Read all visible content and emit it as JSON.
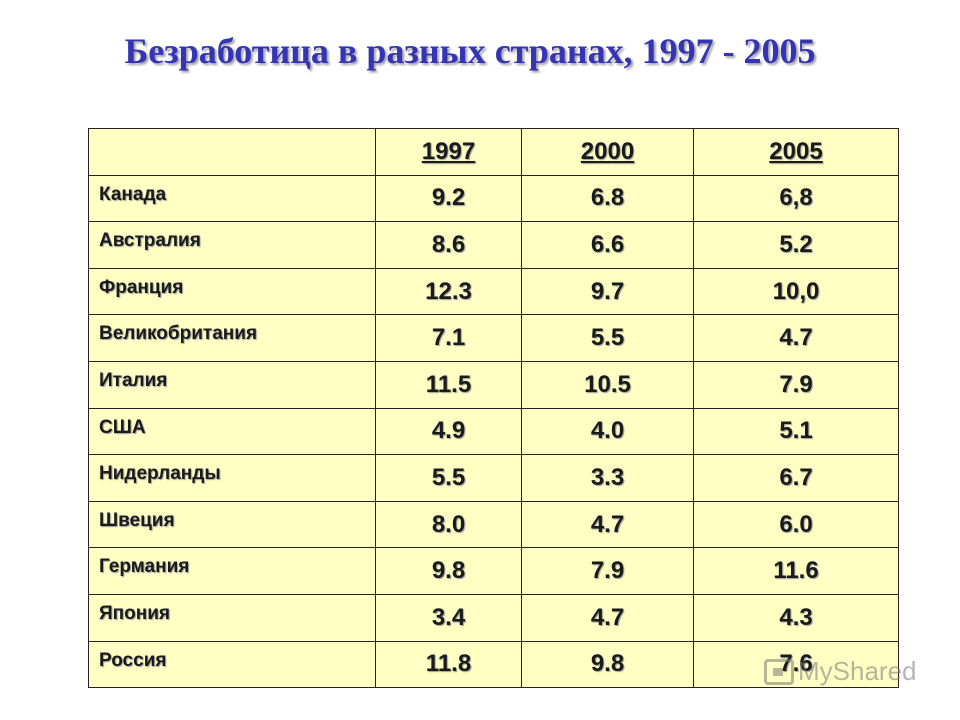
{
  "title": "Безработица в разных странах, 1997 - 2005",
  "table": {
    "header": [
      "",
      "1997",
      "2000",
      "2005"
    ],
    "rows": [
      {
        "country": "Канада",
        "v1997": "9.2",
        "v2000": "6.8",
        "v2005": "6,8"
      },
      {
        "country": "Австралия",
        "v1997": "8.6",
        "v2000": "6.6",
        "v2005": "5.2"
      },
      {
        "country": "Франция",
        "v1997": "12.3",
        "v2000": "9.7",
        "v2005": "10,0"
      },
      {
        "country": "Великобритания",
        "v1997": "7.1",
        "v2000": "5.5",
        "v2005": "4.7"
      },
      {
        "country": "Италия",
        "v1997": "11.5",
        "v2000": "10.5",
        "v2005": "7.9"
      },
      {
        "country": "США",
        "v1997": "4.9",
        "v2000": "4.0",
        "v2005": "5.1"
      },
      {
        "country": "Нидерланды",
        "v1997": "5.5",
        "v2000": "3.3",
        "v2005": "6.7"
      },
      {
        "country": "Швеция",
        "v1997": "8.0",
        "v2000": "4.7",
        "v2005": "6.0"
      },
      {
        "country": "Германия",
        "v1997": "9.8",
        "v2000": "7.9",
        "v2005": "11.6"
      },
      {
        "country": "Япония",
        "v1997": "3.4",
        "v2000": "4.7",
        "v2005": "4.3"
      },
      {
        "country": "Россия",
        "v1997": "11.8",
        "v2000": "9.8",
        "v2005": "7.6"
      }
    ]
  },
  "colors": {
    "title": "#3434b4",
    "table_bg": "#ffffc4"
  },
  "watermark": {
    "text": "MyShared",
    "icon": "presentation-icon"
  }
}
